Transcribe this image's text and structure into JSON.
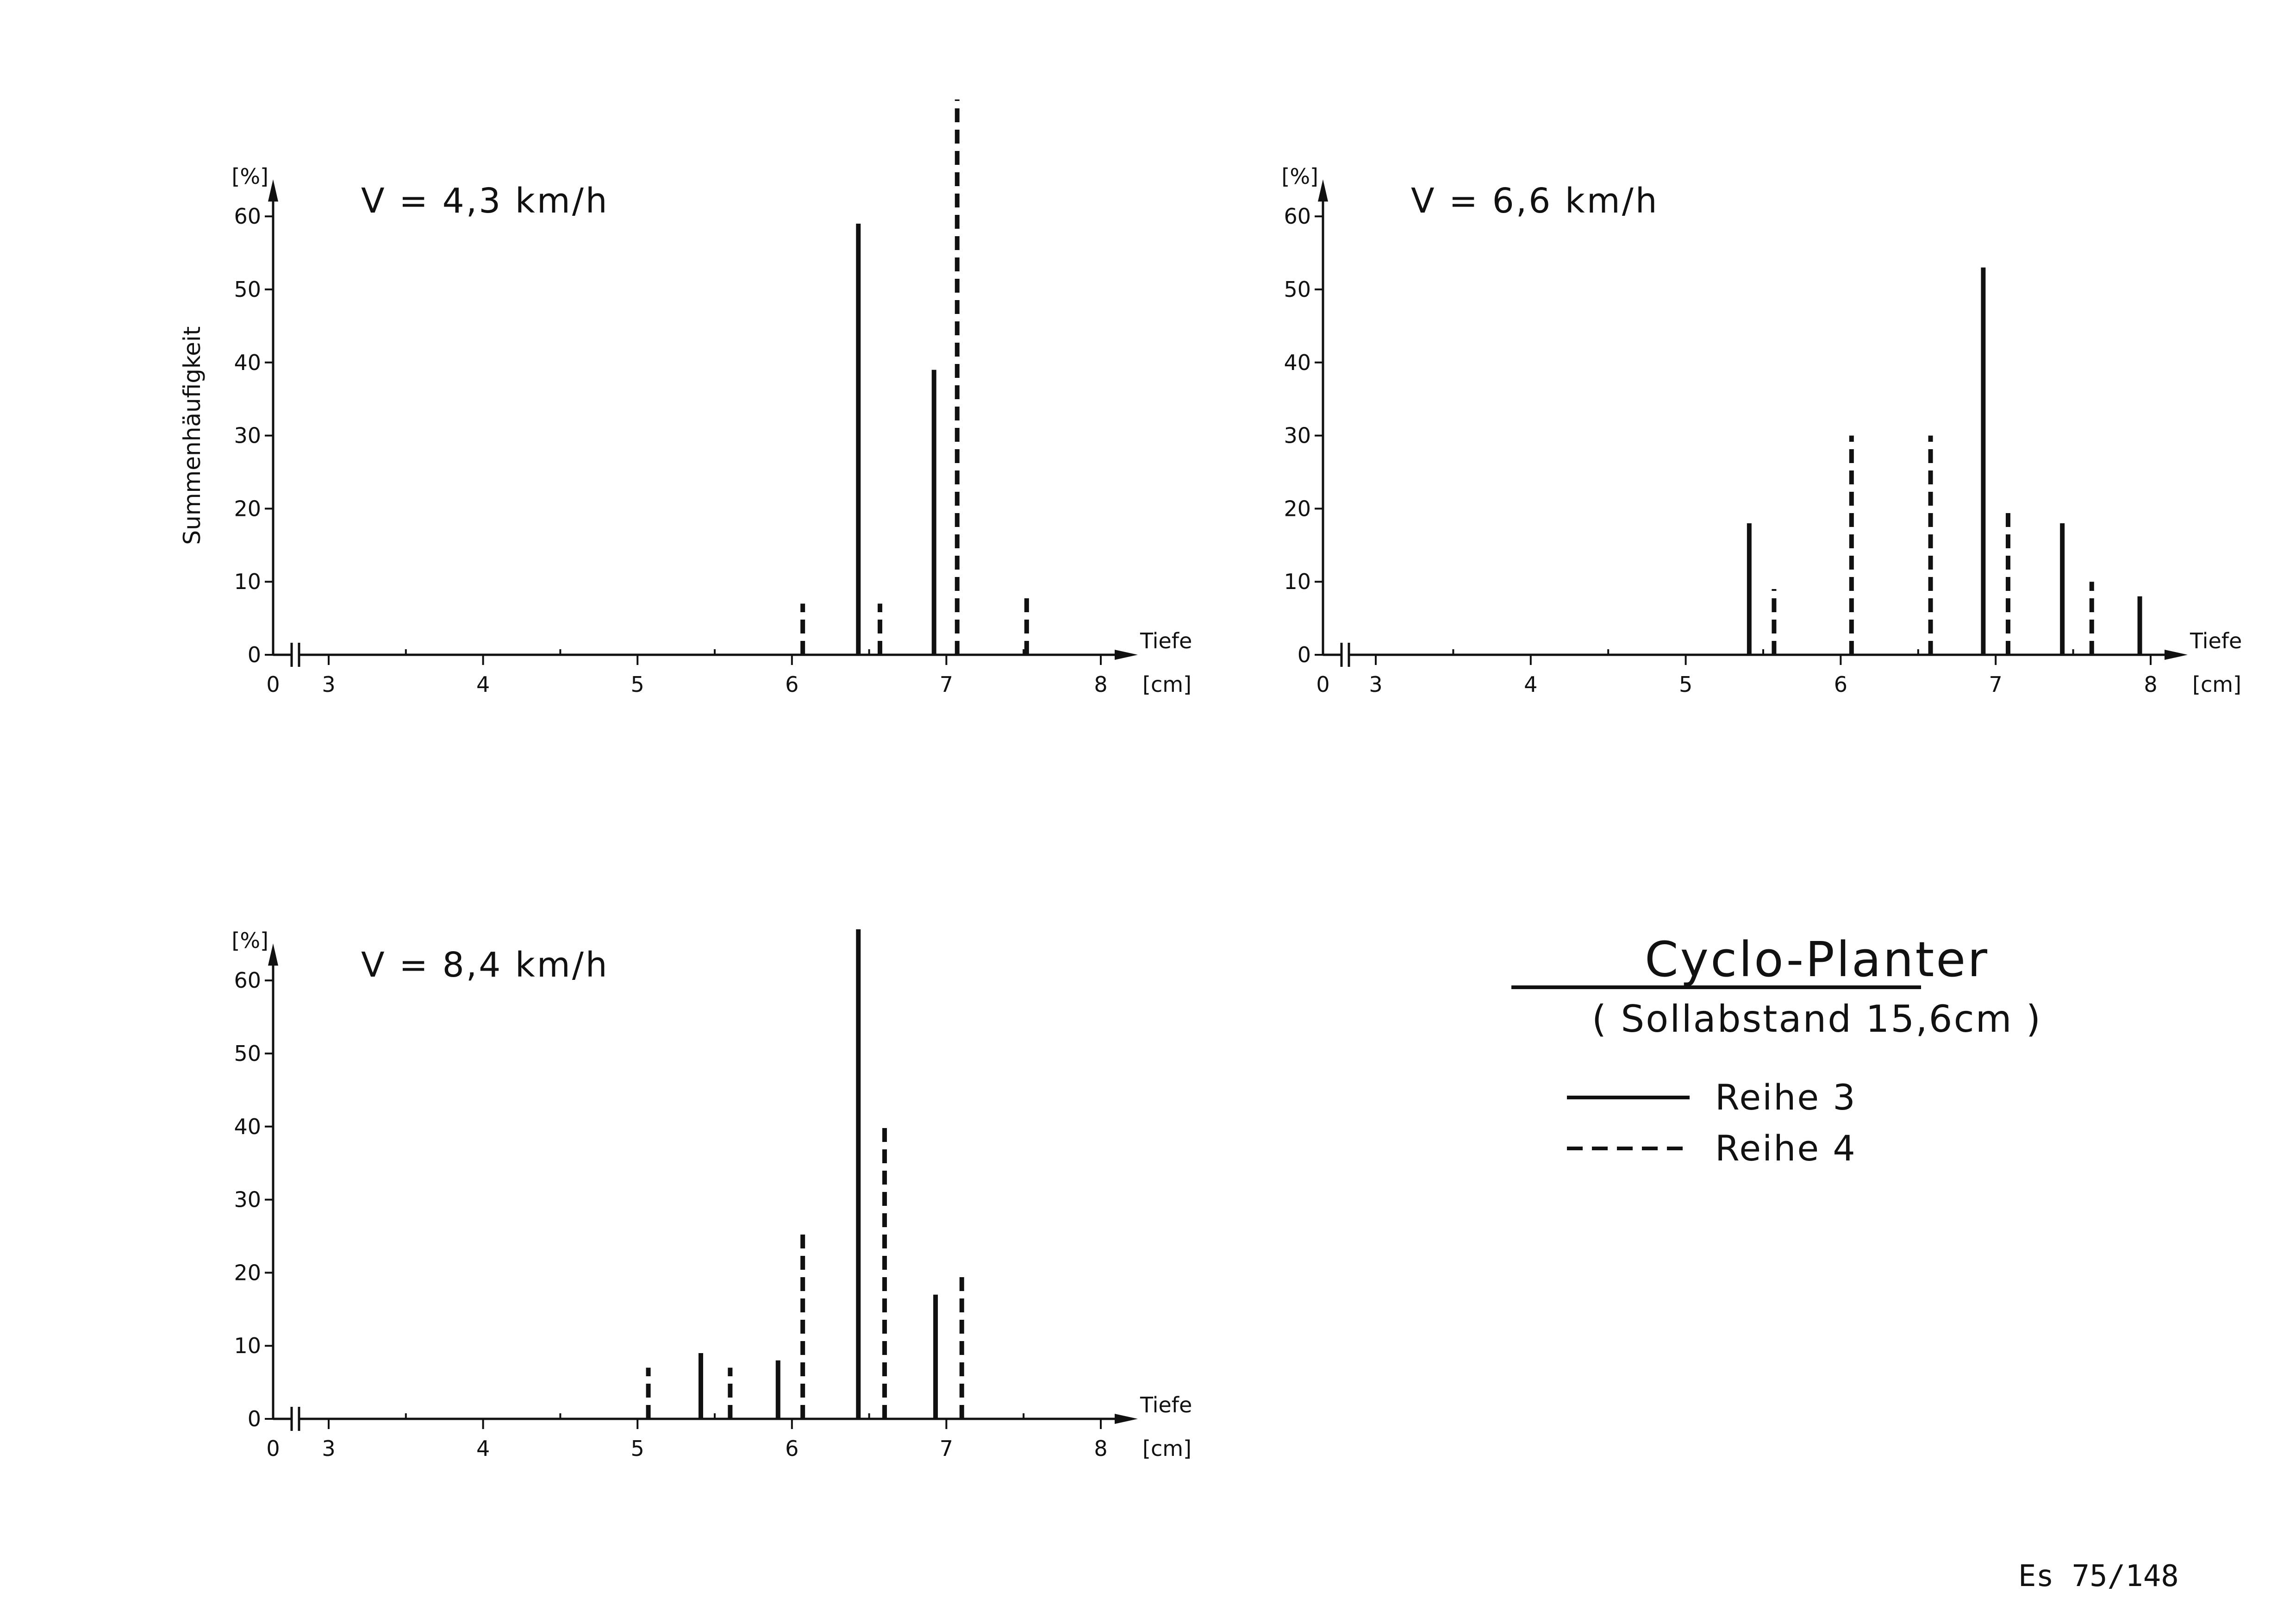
{
  "legend": {
    "title": "Cyclo-Planter",
    "subtitle": "( Sollabstand 15,6cm )",
    "items": [
      {
        "label": "Reihe 3",
        "style": "solid"
      },
      {
        "label": "Reihe 4",
        "style": "dashed"
      }
    ]
  },
  "document_number": "Es 75/148",
  "chart_data": [
    {
      "type": "bar",
      "title": "V = 4,3 km/h",
      "ylabel": "Summenhäufigkeit",
      "yunit": "[%]",
      "xlabel": "Tiefe",
      "xunit": "[cm]",
      "ylim": [
        0,
        60
      ],
      "yticks": [
        0,
        10,
        20,
        30,
        40,
        50,
        60
      ],
      "xticks": [
        3,
        4,
        5,
        6,
        7,
        8
      ],
      "x_origin_label": "0",
      "axis_break": true,
      "grid": false,
      "series": [
        {
          "name": "Reihe 3",
          "style": "solid",
          "points": [
            {
              "x": 6.43,
              "y": 59
            },
            {
              "x": 6.92,
              "y": 39
            }
          ]
        },
        {
          "name": "Reihe 4",
          "style": "dashed",
          "points": [
            {
              "x": 6.07,
              "y": 7
            },
            {
              "x": 6.57,
              "y": 7
            },
            {
              "x": 7.07,
              "y": 76
            },
            {
              "x": 7.52,
              "y": 8
            }
          ]
        }
      ]
    },
    {
      "type": "bar",
      "title": "V = 6,6 km/h",
      "ylabel": "",
      "yunit": "[%]",
      "xlabel": "Tiefe",
      "xunit": "[cm]",
      "ylim": [
        0,
        60
      ],
      "yticks": [
        0,
        10,
        20,
        30,
        40,
        50,
        60
      ],
      "xticks": [
        3,
        4,
        5,
        6,
        7,
        8
      ],
      "x_origin_label": "0",
      "axis_break": true,
      "grid": false,
      "series": [
        {
          "name": "Reihe 3",
          "style": "solid",
          "points": [
            {
              "x": 5.41,
              "y": 18
            },
            {
              "x": 6.92,
              "y": 53
            },
            {
              "x": 7.43,
              "y": 18
            },
            {
              "x": 7.93,
              "y": 8
            }
          ]
        },
        {
          "name": "Reihe 4",
          "style": "dashed",
          "points": [
            {
              "x": 5.57,
              "y": 9
            },
            {
              "x": 6.07,
              "y": 30
            },
            {
              "x": 6.58,
              "y": 30
            },
            {
              "x": 7.08,
              "y": 20
            },
            {
              "x": 7.62,
              "y": 10
            }
          ]
        }
      ]
    },
    {
      "type": "bar",
      "title": "V = 8,4 km/h",
      "ylabel": "",
      "yunit": "[%]",
      "xlabel": "Tiefe",
      "xunit": "[cm]",
      "ylim": [
        0,
        60
      ],
      "yticks": [
        0,
        10,
        20,
        30,
        40,
        50,
        60
      ],
      "xticks": [
        3,
        4,
        5,
        6,
        7,
        8
      ],
      "x_origin_label": "0",
      "axis_break": true,
      "grid": false,
      "series": [
        {
          "name": "Reihe 3",
          "style": "solid",
          "points": [
            {
              "x": 5.41,
              "y": 9
            },
            {
              "x": 5.91,
              "y": 8
            },
            {
              "x": 6.43,
              "y": 67
            },
            {
              "x": 6.93,
              "y": 17
            }
          ]
        },
        {
          "name": "Reihe 4",
          "style": "dashed",
          "points": [
            {
              "x": 5.07,
              "y": 7
            },
            {
              "x": 5.6,
              "y": 7
            },
            {
              "x": 6.07,
              "y": 26
            },
            {
              "x": 6.6,
              "y": 40
            },
            {
              "x": 7.1,
              "y": 20
            }
          ]
        }
      ]
    }
  ]
}
